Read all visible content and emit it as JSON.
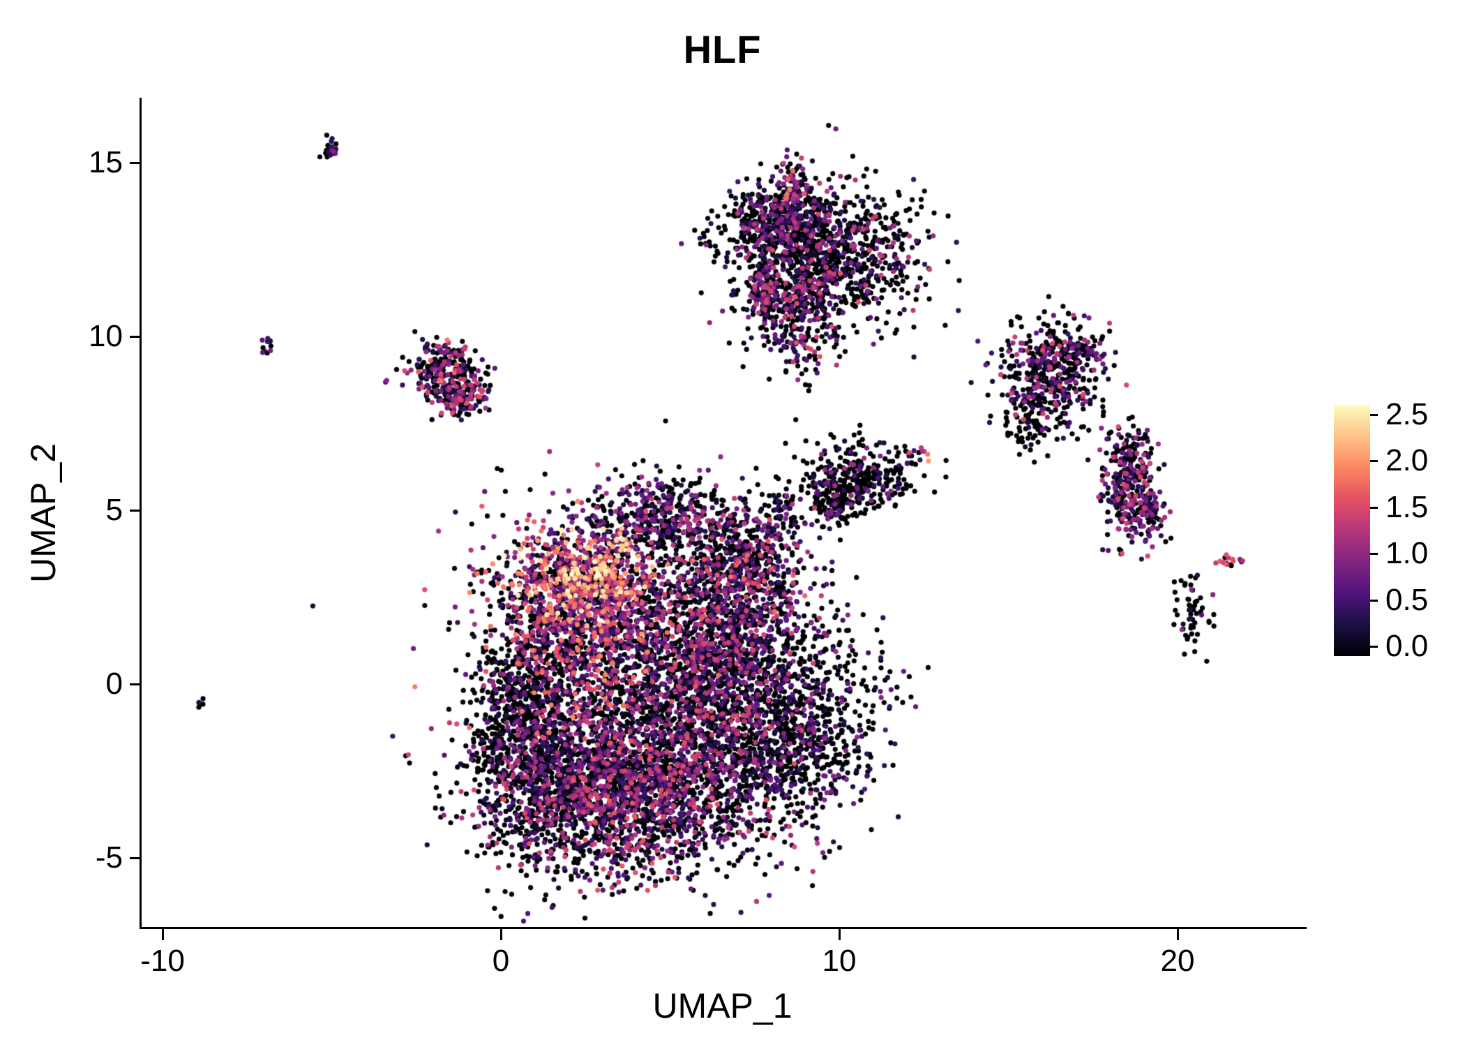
{
  "title": "HLF",
  "axes": {
    "x_label": "UMAP_1",
    "y_label": "UMAP_2",
    "x_tick_labels": [
      "-10",
      "0",
      "10",
      "20"
    ],
    "y_tick_labels": [
      "15",
      "10",
      "5",
      "0",
      "-5"
    ]
  },
  "legend": {
    "tick_labels": [
      "2.5",
      "2.0",
      "1.5",
      "1.0",
      "0.5",
      "0.0"
    ]
  },
  "chart_data": {
    "type": "scatter",
    "title": "HLF",
    "xlabel": "UMAP_1",
    "ylabel": "UMAP_2",
    "xlim": [
      -10.62,
      23.71
    ],
    "ylim": [
      -6.99,
      16.87
    ],
    "x_ticks": [
      -10,
      0,
      10,
      20
    ],
    "y_ticks": [
      15,
      10,
      5,
      0,
      -5
    ],
    "grid": false,
    "legend_position": "right",
    "point_radius_px": 3.6,
    "seed": 42,
    "color_scale": {
      "name": "magma",
      "domain": [
        0.0,
        2.5
      ],
      "legend_ticks": [
        2.5,
        2.0,
        1.5,
        1.0,
        0.5,
        0.0
      ],
      "stops": [
        {
          "t": 0.0,
          "color": "#000004"
        },
        {
          "t": 0.125,
          "color": "#1c1044"
        },
        {
          "t": 0.25,
          "color": "#4f127b"
        },
        {
          "t": 0.375,
          "color": "#812581"
        },
        {
          "t": 0.5,
          "color": "#b5367a"
        },
        {
          "t": 0.625,
          "color": "#e55064"
        },
        {
          "t": 0.75,
          "color": "#fb8761"
        },
        {
          "t": 0.875,
          "color": "#fec287"
        },
        {
          "t": 1.0,
          "color": "#fcfdbf"
        }
      ]
    },
    "clusters": [
      {
        "n": 2400,
        "cx": 3.6,
        "cy": -3.0,
        "sx": 2.0,
        "sy": 1.3,
        "zero": 0.5,
        "lo": 0.2,
        "hi": 1.6,
        "pow": 1.6
      },
      {
        "n": 1600,
        "cx": 5.9,
        "cy": 0.3,
        "sx": 1.5,
        "sy": 1.9,
        "zero": 0.55,
        "lo": 0.2,
        "hi": 1.5,
        "pow": 1.5
      },
      {
        "n": 1100,
        "cx": 2.3,
        "cy": 1.6,
        "sx": 1.4,
        "sy": 1.4,
        "zero": 0.4,
        "lo": 0.3,
        "hi": 1.9,
        "pow": 1.3
      },
      {
        "n": 600,
        "cx": 2.6,
        "cy": 3.1,
        "sx": 1.0,
        "sy": 0.65,
        "zero": 0.25,
        "lo": 0.5,
        "hi": 2.5,
        "pow": 1.2
      },
      {
        "n": 450,
        "cx": 4.7,
        "cy": 4.8,
        "sx": 1.2,
        "sy": 0.6,
        "zero": 0.45,
        "lo": 0.2,
        "hi": 1.4,
        "pow": 1.5
      },
      {
        "n": 900,
        "cx": 0.8,
        "cy": -1.2,
        "sx": 0.8,
        "sy": 1.6,
        "zero": 0.72,
        "lo": 0.2,
        "hi": 1.3,
        "pow": 1.8
      },
      {
        "n": 650,
        "cx": 8.4,
        "cy": -1.3,
        "sx": 1.0,
        "sy": 1.3,
        "zero": 0.7,
        "lo": 0.2,
        "hi": 1.2,
        "pow": 1.6
      },
      {
        "n": 450,
        "cx": 7.3,
        "cy": 3.4,
        "sx": 0.9,
        "sy": 0.9,
        "zero": 0.55,
        "lo": 0.2,
        "hi": 1.8,
        "pow": 1.5
      },
      {
        "n": 350,
        "cx": 6.8,
        "cy": 1.6,
        "sx": 0.8,
        "sy": 1.2,
        "zero": 0.45,
        "lo": 0.2,
        "hi": 1.3,
        "pow": 1.4
      },
      {
        "n": 250,
        "cx": 4.5,
        "cy": -0.5,
        "sx": 3.2,
        "sy": 2.8,
        "zero": 0.6,
        "lo": 0.2,
        "hi": 1.4,
        "pow": 1.6
      },
      {
        "n": 120,
        "cx": 10.0,
        "cy": -1.8,
        "sx": 0.7,
        "sy": 0.9,
        "zero": 0.65,
        "lo": 0.2,
        "hi": 1.1,
        "pow": 1.5
      },
      {
        "n": 60,
        "cx": 8.3,
        "cy": 4.9,
        "sx": 0.45,
        "sy": 0.45,
        "zero": 0.5,
        "lo": 0.2,
        "hi": 1.3,
        "pow": 1.4
      },
      {
        "n": 1100,
        "cx": 9.4,
        "cy": 12.4,
        "sx": 1.4,
        "sy": 1.0,
        "zero": 0.68,
        "lo": 0.2,
        "hi": 1.4,
        "pow": 1.7
      },
      {
        "n": 300,
        "cx": 8.2,
        "cy": 13.4,
        "sx": 0.6,
        "sy": 0.5,
        "zero": 0.55,
        "lo": 0.2,
        "hi": 1.3,
        "pow": 1.5
      },
      {
        "n": 260,
        "cx": 8.9,
        "cy": 10.6,
        "sx": 0.55,
        "sy": 0.9,
        "zero": 0.5,
        "lo": 0.2,
        "hi": 1.6,
        "pow": 1.4
      },
      {
        "n": 70,
        "cx": 8.6,
        "cy": 14.4,
        "sx": 0.18,
        "sy": 0.35,
        "zero": 0.4,
        "lo": 0.3,
        "hi": 1.8,
        "pow": 1.2
      },
      {
        "n": 90,
        "cx": 7.8,
        "cy": 11.3,
        "sx": 0.25,
        "sy": 0.45,
        "zero": 0.35,
        "lo": 0.3,
        "hi": 1.5,
        "pow": 1.3
      },
      {
        "n": 240,
        "cx": -1.7,
        "cy": 9.0,
        "sx": 0.55,
        "sy": 0.45,
        "zero": 0.55,
        "lo": 0.2,
        "hi": 1.8,
        "pow": 1.4
      },
      {
        "n": 130,
        "cx": -1.15,
        "cy": 8.3,
        "sx": 0.35,
        "sy": 0.3,
        "zero": 0.4,
        "lo": 0.3,
        "hi": 1.6,
        "pow": 1.3
      },
      {
        "n": 22,
        "cx": -5.0,
        "cy": 15.4,
        "sx": 0.18,
        "sy": 0.12,
        "zero": 0.5,
        "lo": 0.3,
        "hi": 1.0,
        "pow": 1.2
      },
      {
        "n": 12,
        "cx": -6.9,
        "cy": 9.7,
        "sx": 0.12,
        "sy": 0.12,
        "zero": 0.5,
        "lo": 0.3,
        "hi": 1.0,
        "pow": 1.3
      },
      {
        "n": 6,
        "cx": -8.8,
        "cy": -0.5,
        "sx": 0.1,
        "sy": 0.08,
        "zero": 0.85,
        "lo": 0.2,
        "hi": 0.6,
        "pow": 1.5
      },
      {
        "n": 420,
        "cx": 16.2,
        "cy": 8.9,
        "sx": 0.75,
        "sy": 0.75,
        "zero": 0.62,
        "lo": 0.2,
        "hi": 1.5,
        "pow": 1.6
      },
      {
        "n": 70,
        "cx": 17.3,
        "cy": 9.5,
        "sx": 0.4,
        "sy": 0.25,
        "zero": 0.5,
        "lo": 0.2,
        "hi": 1.2,
        "pow": 1.4
      },
      {
        "n": 60,
        "cx": 15.7,
        "cy": 7.4,
        "sx": 0.5,
        "sy": 0.5,
        "zero": 0.75,
        "lo": 0.2,
        "hi": 0.9,
        "pow": 1.5
      },
      {
        "n": 320,
        "cx": 18.6,
        "cy": 5.8,
        "sx": 0.45,
        "sy": 0.85,
        "zero": 0.45,
        "lo": 0.2,
        "hi": 1.5,
        "pow": 1.4
      },
      {
        "n": 60,
        "cx": 19.2,
        "cy": 4.8,
        "sx": 0.25,
        "sy": 0.3,
        "zero": 0.5,
        "lo": 0.2,
        "hi": 1.2,
        "pow": 1.4
      },
      {
        "n": 55,
        "cx": 20.4,
        "cy": 2.2,
        "sx": 0.3,
        "sy": 0.6,
        "zero": 0.8,
        "lo": 0.2,
        "hi": 1.0,
        "pow": 1.5
      },
      {
        "n": 18,
        "cx": 21.5,
        "cy": 3.5,
        "sx": 0.18,
        "sy": 0.1,
        "zero": 0.2,
        "lo": 0.8,
        "hi": 1.6,
        "pow": 1.0
      },
      {
        "n": 300,
        "cx": 10.6,
        "cy": 5.9,
        "sx": 0.85,
        "sy": 0.55,
        "zero": 0.8,
        "lo": 0.2,
        "hi": 1.2,
        "pow": 1.6
      },
      {
        "n": 90,
        "cx": 9.8,
        "cy": 5.2,
        "sx": 0.4,
        "sy": 0.35,
        "zero": 0.7,
        "lo": 0.2,
        "hi": 1.2,
        "pow": 1.5
      },
      {
        "n": 14,
        "cx": 12.3,
        "cy": 6.5,
        "sx": 0.25,
        "sy": 0.15,
        "zero": 0.5,
        "lo": 0.3,
        "hi": 2.0,
        "pow": 1.2
      },
      {
        "n": 25,
        "cx": 11.5,
        "cy": 0.2,
        "sx": 0.4,
        "sy": 0.8,
        "zero": 0.7,
        "lo": 0.2,
        "hi": 0.9,
        "pow": 1.5
      },
      {
        "n": 40,
        "cx": 9.8,
        "cy": 1.2,
        "sx": 0.5,
        "sy": 0.8,
        "zero": 0.6,
        "lo": 0.2,
        "hi": 1.2,
        "pow": 1.4
      }
    ]
  }
}
